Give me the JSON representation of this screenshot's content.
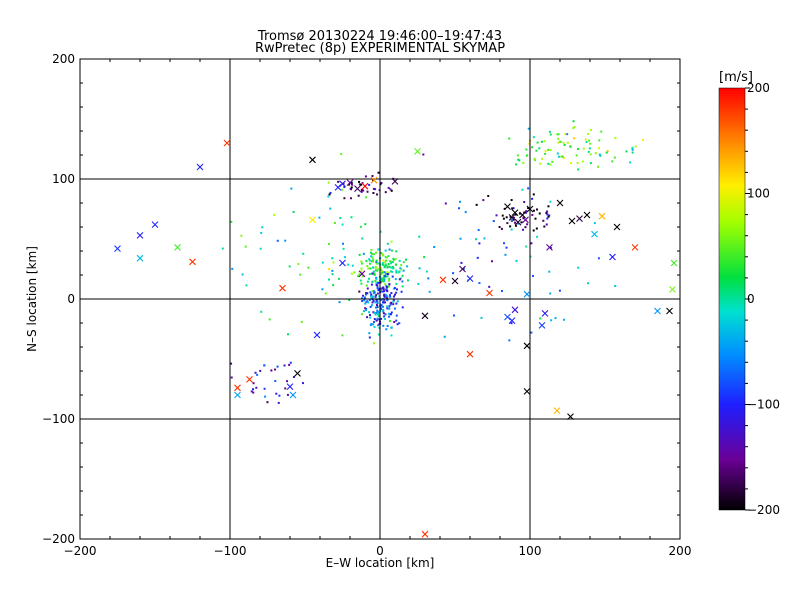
{
  "chart_data": {
    "type": "scatter",
    "title": "Tromsø 20130224 19:46:00–19:47:43",
    "subtitle": "RwPretec (8p) EXPERIMENTAL SKYMAP",
    "xlabel": "E–W location [km]",
    "ylabel": "N–S location [km]",
    "xlim": [
      -200,
      200
    ],
    "ylim": [
      -200,
      200
    ],
    "xticks": [
      -200,
      -100,
      0,
      100,
      200
    ],
    "yticks": [
      -200,
      -100,
      0,
      100,
      200
    ],
    "grid": "x = -100, 0, 100 and y = -100, 0, 100",
    "colorbar": {
      "label": "[m/s]",
      "range": [
        -200,
        200
      ],
      "ticks": [
        200,
        100,
        0,
        -100,
        -200
      ],
      "colormap": "rainbow: black (-200) → purple → blue → cyan → green → yellow → red (+200)"
    },
    "crosses": [
      {
        "x": -102,
        "y": 130,
        "v": 180
      },
      {
        "x": -120,
        "y": 110,
        "v": -100
      },
      {
        "x": -175,
        "y": 42,
        "v": -90
      },
      {
        "x": -160,
        "y": 53,
        "v": -100
      },
      {
        "x": -150,
        "y": 62,
        "v": -95
      },
      {
        "x": -160,
        "y": 34,
        "v": -30
      },
      {
        "x": -135,
        "y": 43,
        "v": 40
      },
      {
        "x": -125,
        "y": 31,
        "v": 180
      },
      {
        "x": -65,
        "y": 9,
        "v": 180
      },
      {
        "x": -45,
        "y": 116,
        "v": -200
      },
      {
        "x": -28,
        "y": 93,
        "v": -100
      },
      {
        "x": -25,
        "y": 96,
        "v": -110
      },
      {
        "x": -20,
        "y": 97,
        "v": -150
      },
      {
        "x": -15,
        "y": 92,
        "v": -170
      },
      {
        "x": -10,
        "y": 94,
        "v": 200
      },
      {
        "x": -4,
        "y": 99,
        "v": 150
      },
      {
        "x": 10,
        "y": 98,
        "v": -180
      },
      {
        "x": 25,
        "y": 123,
        "v": 50
      },
      {
        "x": -45,
        "y": 66,
        "v": 110
      },
      {
        "x": -25,
        "y": 30,
        "v": -100
      },
      {
        "x": -12,
        "y": 21,
        "v": -150
      },
      {
        "x": -42,
        "y": -30,
        "v": -100
      },
      {
        "x": 42,
        "y": 16,
        "v": 180
      },
      {
        "x": 50,
        "y": 15,
        "v": -190
      },
      {
        "x": 55,
        "y": 25,
        "v": -170
      },
      {
        "x": 60,
        "y": 17,
        "v": -100
      },
      {
        "x": 73,
        "y": 5,
        "v": 180
      },
      {
        "x": 30,
        "y": -14,
        "v": -190
      },
      {
        "x": 60,
        "y": -46,
        "v": 180
      },
      {
        "x": 85,
        "y": 77,
        "v": -200
      },
      {
        "x": 88,
        "y": 68,
        "v": -190
      },
      {
        "x": 90,
        "y": 72,
        "v": -200
      },
      {
        "x": 92,
        "y": 64,
        "v": -180
      },
      {
        "x": 95,
        "y": 70,
        "v": -200
      },
      {
        "x": 100,
        "y": 75,
        "v": -195
      },
      {
        "x": 97,
        "y": 66,
        "v": -150
      },
      {
        "x": 120,
        "y": 80,
        "v": -200
      },
      {
        "x": 128,
        "y": 65,
        "v": -200
      },
      {
        "x": 133,
        "y": 67,
        "v": -180
      },
      {
        "x": 138,
        "y": 70,
        "v": -200
      },
      {
        "x": 143,
        "y": 54,
        "v": -30
      },
      {
        "x": 148,
        "y": 69,
        "v": 130
      },
      {
        "x": 158,
        "y": 60,
        "v": -200
      },
      {
        "x": 170,
        "y": 43,
        "v": 180
      },
      {
        "x": 155,
        "y": 35,
        "v": -100
      },
      {
        "x": 113,
        "y": 43,
        "v": -150
      },
      {
        "x": 98,
        "y": 4,
        "v": -50
      },
      {
        "x": 90,
        "y": -9,
        "v": -120
      },
      {
        "x": 88,
        "y": -18,
        "v": -100
      },
      {
        "x": 85,
        "y": -15,
        "v": -80
      },
      {
        "x": 110,
        "y": -12,
        "v": -110
      },
      {
        "x": 108,
        "y": -22,
        "v": -90
      },
      {
        "x": 98,
        "y": -39,
        "v": -200
      },
      {
        "x": 98,
        "y": -77,
        "v": -200
      },
      {
        "x": 118,
        "y": -93,
        "v": 130
      },
      {
        "x": 127,
        "y": -98,
        "v": -200
      },
      {
        "x": 30,
        "y": -196,
        "v": 180
      },
      {
        "x": -55,
        "y": -62,
        "v": -200
      },
      {
        "x": -60,
        "y": -73,
        "v": -100
      },
      {
        "x": -58,
        "y": -80,
        "v": -50
      },
      {
        "x": -87,
        "y": -67,
        "v": 180
      },
      {
        "x": -95,
        "y": -74,
        "v": 180
      },
      {
        "x": -95,
        "y": -80,
        "v": -40
      },
      {
        "x": 185,
        "y": -10,
        "v": -50
      },
      {
        "x": 193,
        "y": -10,
        "v": -200
      },
      {
        "x": 195,
        "y": 8,
        "v": 60
      },
      {
        "x": 196,
        "y": 30,
        "v": 40
      }
    ]
  }
}
